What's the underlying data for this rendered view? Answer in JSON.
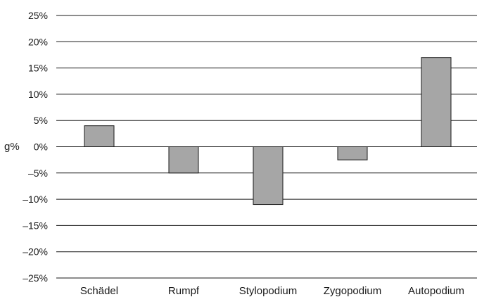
{
  "chart_data": {
    "type": "bar",
    "categories": [
      "Schädel",
      "Rumpf",
      "Stylopodium",
      "Zygopodium",
      "Autopodium"
    ],
    "values": [
      4,
      -5,
      -11,
      -2.5,
      17
    ],
    "ylabel": "g%",
    "ylim": [
      -25,
      25
    ],
    "yticks": [
      25,
      20,
      15,
      10,
      5,
      0,
      -5,
      -10,
      -15,
      -20,
      -25
    ],
    "ytick_labels": [
      "25%",
      "20%",
      "15%",
      "10%",
      "5%",
      "0%",
      "–5%",
      "–10%",
      "–15%",
      "–20%",
      "–25%"
    ],
    "grid": true,
    "colors": {
      "bar": "#a6a6a6",
      "line": "#1a1a1a"
    }
  }
}
